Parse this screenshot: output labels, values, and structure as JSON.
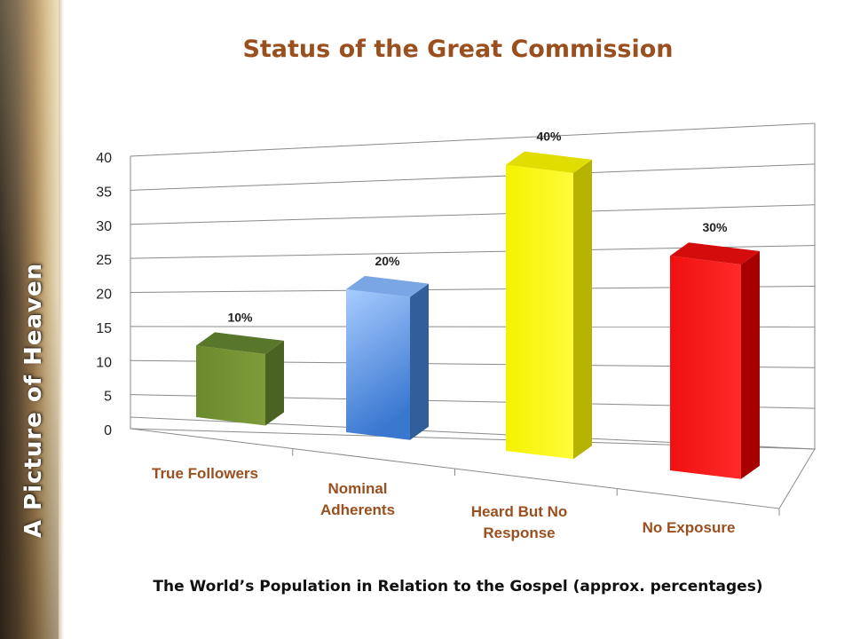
{
  "side_title": "A Picture of Heaven",
  "chart_data": {
    "type": "bar",
    "title": "Status of the Great Commission",
    "caption": "The World’s Population in Relation to the Gospel (approx. percentages)",
    "categories": [
      [
        "True Followers"
      ],
      [
        "Nominal",
        "Adherents"
      ],
      [
        "Heard But No",
        "Response"
      ],
      [
        "No Exposure"
      ]
    ],
    "values": [
      10,
      20,
      40,
      30
    ],
    "data_labels": [
      "10%",
      "20%",
      "40%",
      "30%"
    ],
    "colors": [
      "#6f8c2e",
      "#5f95e0",
      "#f2ee0a",
      "#e81010"
    ],
    "ylim": [
      0,
      40
    ],
    "yticks": [
      0,
      5,
      10,
      15,
      20,
      25,
      30,
      35,
      40
    ],
    "grid": true,
    "style": "3d"
  }
}
